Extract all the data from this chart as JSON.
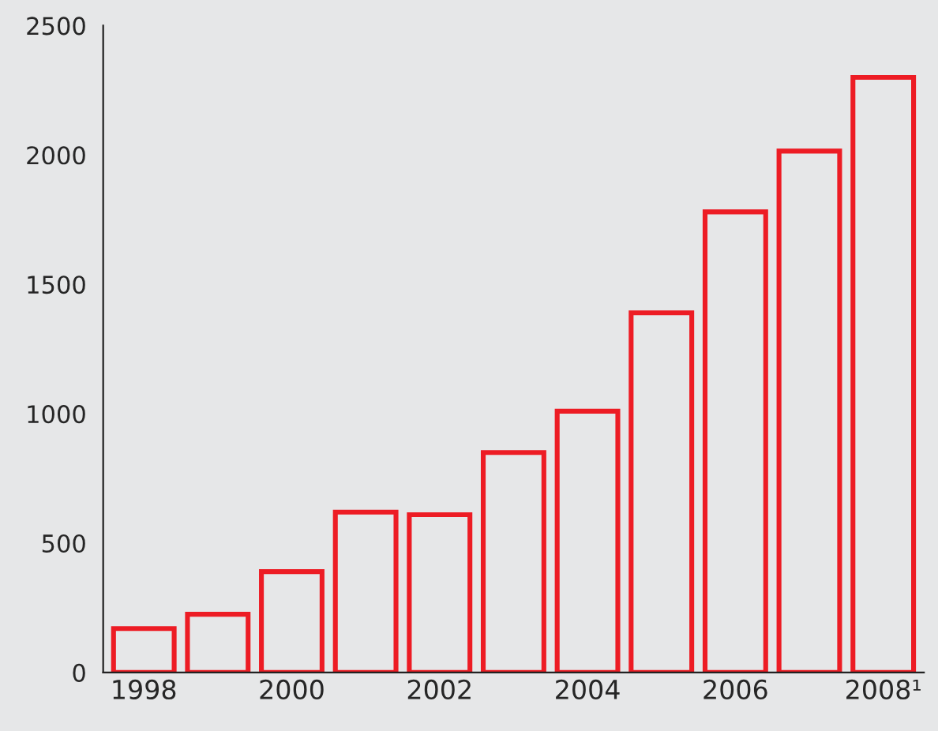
{
  "chart_data": {
    "type": "bar",
    "categories": [
      "1998",
      null,
      "2000",
      null,
      "2002",
      null,
      "2004",
      null,
      "2006",
      null,
      "2008¹"
    ],
    "values": [
      170,
      225,
      390,
      620,
      610,
      850,
      1010,
      1390,
      1780,
      2015,
      2300
    ],
    "color": "#ed1c24",
    "ylim": [
      0,
      2500
    ],
    "yticks": [
      0,
      500,
      1000,
      1500,
      2000,
      2500
    ],
    "grid": false
  }
}
